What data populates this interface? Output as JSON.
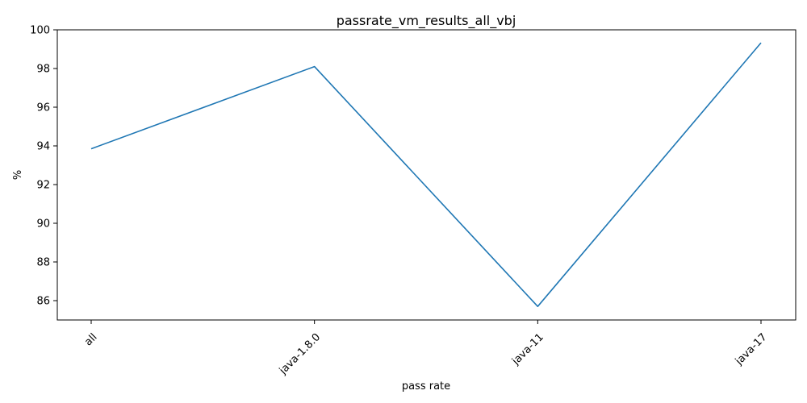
{
  "chart_data": {
    "type": "line",
    "title": "passrate_vm_results_all_vbj",
    "xlabel": "pass rate",
    "ylabel": "%",
    "categories": [
      "all",
      "java-1.8.0",
      "java-11",
      "java-17"
    ],
    "series": [
      {
        "values": [
          93.85,
          98.1,
          85.7,
          99.33
        ],
        "color": "#1f77b4"
      }
    ],
    "ylim": [
      85.0,
      100.0
    ],
    "yticks": [
      86,
      88,
      90,
      92,
      94,
      96,
      98,
      100
    ],
    "xtick_rotation": 45,
    "grid": false,
    "legend": "none"
  }
}
